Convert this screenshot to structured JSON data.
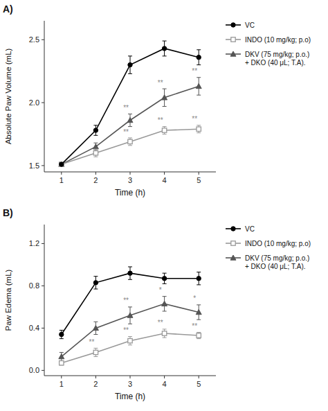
{
  "chart_data": [
    {
      "type": "line",
      "title": "A)",
      "x_label": "Time (h)",
      "y_label": "Absolute Paw Volume (mL)",
      "x": [
        1,
        2,
        3,
        4,
        5
      ],
      "xlim": [
        0.5,
        5.5
      ],
      "xticks": [
        1,
        2,
        3,
        4,
        5
      ],
      "ylim": [
        1.45,
        2.65
      ],
      "yticks": [
        1.5,
        {
          "value": 2.0,
          "label": "2.0"
        },
        2.5
      ],
      "grid": false,
      "legend": "right",
      "series": [
        {
          "name": "VC",
          "color": "#000000",
          "marker": "circle",
          "line_style": "solid",
          "values": [
            1.51,
            1.78,
            2.3,
            2.43,
            2.36
          ],
          "errors": [
            0.01,
            0.04,
            0.07,
            0.06,
            0.06
          ]
        },
        {
          "name": "INDO (10 mg/kg; p.o)",
          "color": "#999999",
          "marker": "square-open",
          "line_style": "solid",
          "values": [
            1.51,
            1.6,
            1.69,
            1.78,
            1.79
          ],
          "errors": [
            0.01,
            0.03,
            0.03,
            0.03,
            0.03
          ],
          "annotations": [
            null,
            null,
            "**",
            "**",
            "**"
          ]
        },
        {
          "name": "DKV (75 mg/kg; p.o.)\n+ DKO (40 μL; T.A).",
          "color": "#555555",
          "marker": "triangle",
          "line_style": "solid",
          "values": [
            1.51,
            1.65,
            1.86,
            2.04,
            2.13
          ],
          "errors": [
            0.01,
            0.03,
            0.05,
            0.07,
            0.07
          ],
          "annotations": [
            null,
            null,
            "**",
            "**",
            "**"
          ]
        }
      ]
    },
    {
      "type": "line",
      "title": "B)",
      "x_label": "Time (h)",
      "y_label": "Paw Edema (mL)",
      "x": [
        1,
        2,
        3,
        4,
        5
      ],
      "xlim": [
        0.5,
        5.5
      ],
      "xticks": [
        1,
        2,
        3,
        4,
        5
      ],
      "ylim": [
        -0.05,
        1.38
      ],
      "yticks": [
        {
          "value": 0.0,
          "label": "0.0"
        },
        0.4,
        0.8,
        1.2
      ],
      "grid": false,
      "legend": "right",
      "series": [
        {
          "name": "VC",
          "color": "#000000",
          "marker": "circle",
          "line_style": "solid",
          "values": [
            0.34,
            0.83,
            0.92,
            0.87,
            0.87
          ],
          "errors": [
            0.04,
            0.06,
            0.06,
            0.05,
            0.06
          ]
        },
        {
          "name": "INDO (10 mg/kg; p.o)",
          "color": "#999999",
          "marker": "square-open",
          "line_style": "solid",
          "values": [
            0.07,
            0.17,
            0.28,
            0.35,
            0.33
          ],
          "errors": [
            0.02,
            0.04,
            0.04,
            0.04,
            0.03
          ],
          "annotations": [
            null,
            "**",
            "**",
            "**",
            "**"
          ]
        },
        {
          "name": "DKV (75 mg/kg; p.o.)\n+ DKO (40 μL; T.A).",
          "color": "#555555",
          "marker": "triangle",
          "line_style": "solid",
          "values": [
            0.13,
            0.4,
            0.52,
            0.63,
            0.55
          ],
          "errors": [
            0.04,
            0.06,
            0.08,
            0.07,
            0.07
          ],
          "annotations": [
            null,
            null,
            "**",
            "*",
            "*"
          ]
        }
      ]
    }
  ]
}
